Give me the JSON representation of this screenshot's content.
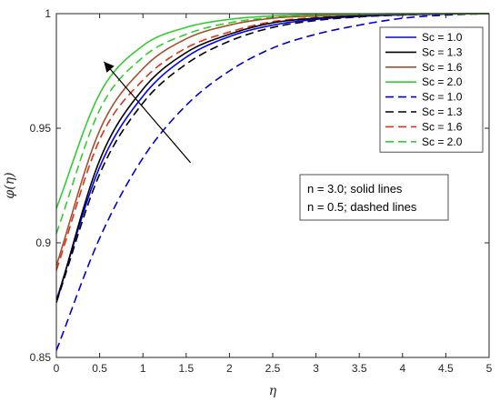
{
  "chart_data": {
    "type": "line",
    "xlabel": "η",
    "ylabel": "φ(η)",
    "xlim": [
      0,
      5
    ],
    "ylim": [
      0.85,
      1
    ],
    "x_ticks": [
      "0",
      "0.5",
      "1",
      "1.5",
      "2",
      "2.5",
      "3",
      "3.5",
      "4",
      "4.5",
      "5"
    ],
    "y_ticks": [
      "0.85",
      "0.9",
      "0.95",
      "1"
    ],
    "grid": false,
    "legend_position": "top-right",
    "x": [
      0,
      0.5,
      1,
      1.5,
      2,
      2.5,
      3,
      3.5,
      4,
      4.5,
      5
    ],
    "series": [
      {
        "name": "Sc = 1.0",
        "style": "solid",
        "color": "#0000ff",
        "values": [
          0.875,
          0.933,
          0.964,
          0.981,
          0.99,
          0.995,
          0.9975,
          0.9988,
          0.9995,
          0.9999,
          1.0
        ]
      },
      {
        "name": "Sc = 1.3",
        "style": "solid",
        "color": "#000000",
        "values": [
          0.874,
          0.936,
          0.967,
          0.983,
          0.991,
          0.996,
          0.998,
          0.9991,
          0.9997,
          0.9999,
          1.0
        ]
      },
      {
        "name": "Sc = 1.6",
        "style": "solid",
        "color": "#a0522d",
        "values": [
          0.89,
          0.949,
          0.976,
          0.989,
          0.995,
          0.998,
          0.999,
          0.9996,
          0.9998,
          1.0,
          1.0
        ]
      },
      {
        "name": "Sc = 2.0",
        "style": "solid",
        "color": "#33cc33",
        "values": [
          0.915,
          0.965,
          0.986,
          0.994,
          0.9975,
          0.999,
          0.9996,
          0.9998,
          1.0,
          1.0,
          1.0
        ]
      },
      {
        "name": "Sc = 1.0",
        "style": "dashed",
        "color": "#0000cc",
        "values": [
          0.853,
          0.902,
          0.937,
          0.96,
          0.975,
          0.985,
          0.991,
          0.995,
          0.998,
          0.9994,
          1.0
        ]
      },
      {
        "name": "Sc = 1.3",
        "style": "dashed",
        "color": "#000000",
        "values": [
          0.874,
          0.93,
          0.961,
          0.978,
          0.988,
          0.994,
          0.997,
          0.9986,
          0.9994,
          0.9998,
          1.0
        ]
      },
      {
        "name": "Sc = 1.6",
        "style": "dashed",
        "color": "#d9331a",
        "values": [
          0.888,
          0.945,
          0.971,
          0.985,
          0.992,
          0.9965,
          0.9983,
          0.9992,
          0.9997,
          0.9999,
          1.0
        ]
      },
      {
        "name": "Sc = 2.0",
        "style": "dashed",
        "color": "#33cc33",
        "values": [
          0.904,
          0.958,
          0.981,
          0.991,
          0.996,
          0.9983,
          0.9993,
          0.9997,
          0.9999,
          1.0,
          1.0
        ]
      }
    ],
    "annotations": [
      "n = 3.0; solid lines",
      "n = 0.5; dashed lines"
    ],
    "arrow": {
      "from": [
        1.55,
        0.935
      ],
      "to": [
        0.55,
        0.979
      ]
    }
  }
}
